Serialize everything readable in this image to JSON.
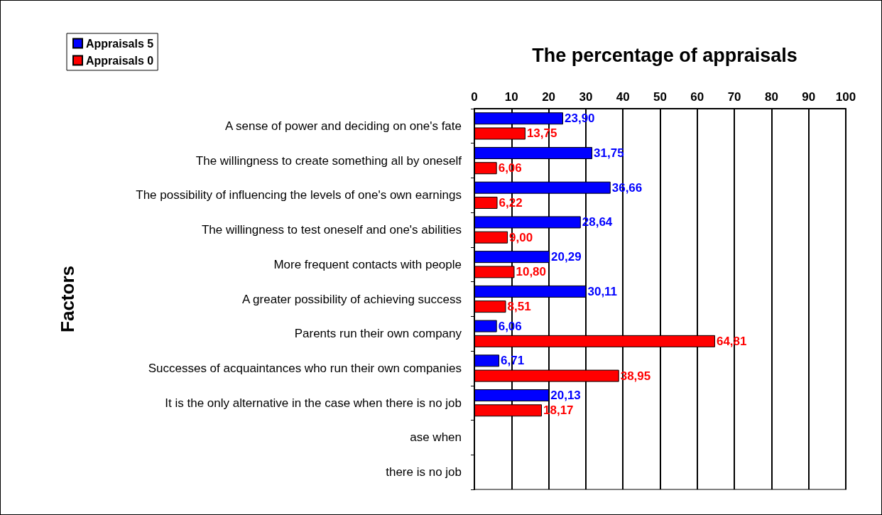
{
  "chart_data": {
    "type": "bar",
    "orientation": "horizontal",
    "title": "The percentage of appraisals",
    "ylabel": "Factors",
    "categories": [
      "A sense of power and deciding on one's fate",
      "The willingness to create something all by oneself",
      "The possibility of influencing the levels of one's own earnings",
      "The willingness to test oneself and one's abilities",
      "More frequent contacts with people",
      "A greater possibility of achieving success",
      "Parents run their own company",
      "Successes of acquaintances who run their own companies",
      "It is the only alternative in the case when there is no job",
      "ase when",
      "there is no job"
    ],
    "series": [
      {
        "name": "Appraisals 5",
        "color": "#0000ff",
        "values": [
          23.9,
          31.75,
          36.66,
          28.64,
          20.29,
          30.11,
          6.06,
          6.71,
          20.13,
          null,
          null
        ],
        "value_labels": [
          "23,90",
          "31,75",
          "36,66",
          "28,64",
          "20,29",
          "30,11",
          "6,06",
          "6,71",
          "20,13",
          null,
          null
        ]
      },
      {
        "name": "Appraisals 0",
        "color": "#ff0000",
        "values": [
          13.75,
          6.06,
          6.22,
          9.0,
          10.8,
          8.51,
          64.81,
          38.95,
          18.17,
          null,
          null
        ],
        "value_labels": [
          "13,75",
          "6,06",
          "6,22",
          "9,00",
          "10,80",
          "8,51",
          "64,81",
          "38,95",
          "18,17",
          null,
          null
        ]
      }
    ],
    "xlim": [
      0,
      100
    ],
    "xticks": [
      0,
      10,
      20,
      30,
      40,
      50,
      60,
      70,
      80,
      90,
      100
    ],
    "grid": "x",
    "legend": "top left"
  }
}
